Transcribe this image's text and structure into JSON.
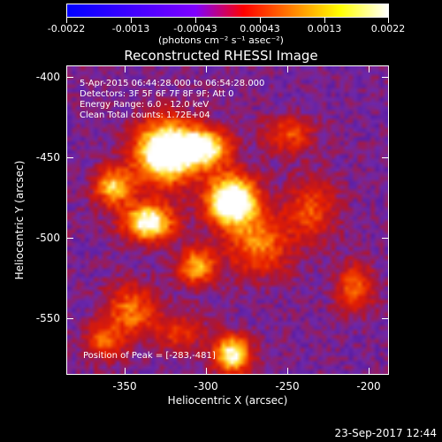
{
  "colorbar": {
    "tick_labels": [
      "-0.0022",
      "-0.0013",
      "-0.00043",
      "0.00043",
      "0.0013",
      "0.0022"
    ],
    "units_label": "(photons cm⁻² s⁻¹ asec⁻²)",
    "colors": [
      "#0000ff",
      "#7f00ff",
      "#ff0000",
      "#ff8000",
      "#ffff00",
      "#ffffff"
    ]
  },
  "title": "Reconstructed RHESSI Image",
  "info": {
    "time_range": "5-Apr-2015 06:44:28.000 to 06:54:28.000",
    "detectors": "Detectors: 3F 5F 6F 7F 8F 9F; Att 0",
    "energy": "Energy Range: 6.0 - 12.0 keV",
    "method": "Clean    Total counts: 1.72E+04",
    "peak": "Position of Peak = [-283,-481]"
  },
  "axes": {
    "x_title": "Heliocentric X (arcsec)",
    "y_title": "Heliocentric Y (arcsec)",
    "x_ticks": [
      "-350",
      "-300",
      "-250",
      "-200"
    ],
    "y_ticks": [
      "-400",
      "-450",
      "-500",
      "-550"
    ]
  },
  "timestamp": "23-Sep-2017 12:44"
}
